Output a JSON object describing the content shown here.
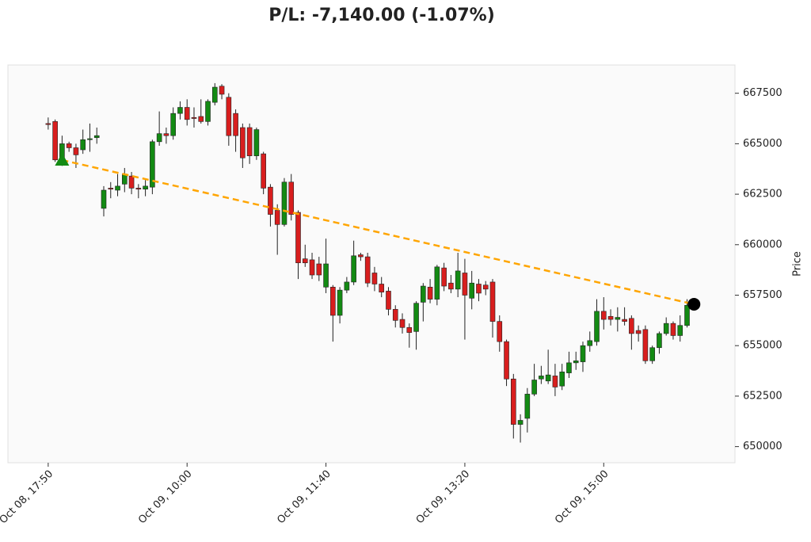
{
  "chart_data": {
    "type": "candlestick",
    "title": "P/L: -7,140.00 (-1.07%)",
    "ylabel": "Price",
    "up_color": "#138a13",
    "down_color": "#d81e1e",
    "open": [
      666000,
      666100,
      664250,
      665000,
      664800,
      664700,
      665200,
      665300,
      661800,
      662800,
      662700,
      663000,
      663400,
      662800,
      662750,
      662850,
      665100,
      665500,
      665400,
      666500,
      666800,
      666300,
      666350,
      666100,
      667050,
      667850,
      667300,
      666500,
      665800,
      665800,
      664400,
      664500,
      662850,
      661700,
      661000,
      663100,
      661600,
      659300,
      659250,
      659050,
      657900,
      657900,
      656500,
      657750,
      658150,
      659500,
      659400,
      658600,
      658050,
      657700,
      656800,
      656300,
      655900,
      655700,
      657150,
      657900,
      657300,
      658850,
      658100,
      657800,
      658600,
      657350,
      658050,
      658000,
      658150,
      656200,
      655200,
      653350,
      651100,
      651400,
      652600,
      653350,
      653250,
      653500,
      653000,
      653650,
      654150,
      654200,
      655000,
      655200,
      656700,
      656450,
      656300,
      656300,
      656350,
      655750,
      655800,
      654250,
      654900,
      655600,
      656100,
      655500,
      656000,
      657000
    ],
    "high": [
      666300,
      666200,
      665400,
      665100,
      665000,
      665700,
      666000,
      665800,
      662900,
      663100,
      663500,
      663800,
      663600,
      663000,
      663200,
      665200,
      666600,
      665800,
      666800,
      667100,
      667200,
      666800,
      667200,
      667200,
      668000,
      667950,
      667500,
      666700,
      666000,
      666000,
      665800,
      664600,
      663000,
      662000,
      663300,
      663500,
      661700,
      660000,
      659600,
      659400,
      660300,
      658000,
      657900,
      658400,
      660200,
      659600,
      659600,
      658900,
      658400,
      657900,
      657000,
      656600,
      656100,
      657200,
      658100,
      658300,
      659000,
      659100,
      658500,
      659600,
      659300,
      658700,
      658300,
      658200,
      658300,
      656500,
      655300,
      653600,
      651600,
      652900,
      654100,
      654000,
      654800,
      654100,
      654100,
      654700,
      654700,
      655200,
      655700,
      657300,
      657400,
      656800,
      656900,
      656900,
      656500,
      656000,
      656000,
      655000,
      655700,
      656400,
      656200,
      656500,
      657300,
      657300
    ],
    "low": [
      665700,
      664100,
      663900,
      664600,
      663800,
      664500,
      664600,
      665000,
      661400,
      662300,
      662400,
      662600,
      662500,
      662300,
      662400,
      662500,
      664900,
      665000,
      665200,
      666200,
      665900,
      665800,
      666000,
      665900,
      666900,
      667200,
      664900,
      664600,
      663800,
      664000,
      664200,
      662500,
      660900,
      659500,
      660900,
      661200,
      658300,
      658900,
      658300,
      658200,
      657600,
      655200,
      656100,
      657600,
      658000,
      659200,
      657900,
      657700,
      657400,
      656500,
      655900,
      655600,
      654900,
      654800,
      656200,
      657100,
      657000,
      657700,
      657600,
      657400,
      655300,
      656800,
      657200,
      657500,
      655400,
      654700,
      653000,
      650400,
      650200,
      650700,
      652500,
      653100,
      653100,
      652500,
      652800,
      653400,
      653800,
      653700,
      654700,
      655000,
      655800,
      656000,
      655700,
      656000,
      654800,
      655200,
      654100,
      654100,
      654600,
      655500,
      655300,
      655200,
      655900,
      656900
    ],
    "close": [
      665950,
      664200,
      665000,
      664800,
      664450,
      665200,
      665250,
      665400,
      662700,
      662750,
      662900,
      663500,
      662800,
      662750,
      662900,
      665100,
      665500,
      665400,
      666500,
      666800,
      666200,
      666250,
      666100,
      667100,
      667800,
      667450,
      665400,
      665400,
      664300,
      664400,
      665700,
      662800,
      661500,
      661000,
      663100,
      661500,
      659100,
      659100,
      658500,
      658500,
      659050,
      656500,
      657750,
      658150,
      659450,
      659400,
      658100,
      658050,
      657650,
      656800,
      656250,
      655900,
      655650,
      657100,
      657950,
      657300,
      658900,
      657950,
      657800,
      658700,
      657500,
      658100,
      657600,
      657800,
      656200,
      655200,
      653350,
      651100,
      651300,
      652600,
      653300,
      653500,
      653550,
      652950,
      653700,
      654150,
      654250,
      655000,
      655250,
      656700,
      656300,
      656300,
      656400,
      656200,
      655600,
      655600,
      654250,
      654900,
      655600,
      656100,
      655500,
      656000,
      657000,
      657150
    ],
    "entry": {
      "index": 2,
      "price": 664190,
      "color": "#138a13"
    },
    "exit": {
      "index": 93,
      "price": 657050,
      "color": "#000000"
    },
    "trade_line_color": "#ffa500",
    "ylim": [
      649200,
      668900
    ],
    "yticks": [
      650000,
      652500,
      655000,
      657500,
      660000,
      662500,
      665000,
      667500
    ],
    "xlim": [
      -5.8,
      98.9
    ],
    "xticks": [
      {
        "value": 0,
        "label": "Oct 08, 17:50"
      },
      {
        "value": 20,
        "label": "Oct 09, 10:00"
      },
      {
        "value": 40,
        "label": "Oct 09, 11:40"
      },
      {
        "value": 60,
        "label": "Oct 09, 13:20"
      },
      {
        "value": 80,
        "label": "Oct 09, 15:00"
      }
    ]
  }
}
